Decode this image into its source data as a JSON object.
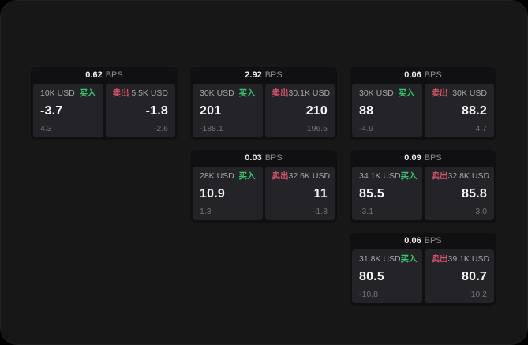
{
  "labels": {
    "bps_unit": "BPS",
    "buy": "买入",
    "sell": "卖出"
  },
  "colors": {
    "screen_bg": "#171718",
    "card_bg": "#101013",
    "tile_bg": "#242428",
    "buy_green": "#35c76a",
    "sell_red": "#d8536a",
    "value_white": "#f5f5f7",
    "label_gray": "#a6a6aa",
    "sub_gray": "#717176"
  },
  "cards": [
    {
      "bps": "0.62",
      "buy": {
        "amount": "10K USD",
        "price": "-3.7",
        "sub": "4.3"
      },
      "sell": {
        "amount": "5.5K USD",
        "price": "-1.8",
        "sub": "-2.6"
      }
    },
    {
      "bps": "2.92",
      "buy": {
        "amount": "30K USD",
        "price": "201",
        "sub": "-188.1"
      },
      "sell": {
        "amount": "30.1K USD",
        "price": "210",
        "sub": "196.5"
      }
    },
    {
      "bps": "0.06",
      "buy": {
        "amount": "30K USD",
        "price": "88",
        "sub": "-4.9"
      },
      "sell": {
        "amount": "30K USD",
        "price": "88.2",
        "sub": "4.7"
      }
    },
    {
      "bps": "0.03",
      "buy": {
        "amount": "28K USD",
        "price": "10.9",
        "sub": "1.3"
      },
      "sell": {
        "amount": "32.6K USD",
        "price": "11",
        "sub": "-1.8"
      }
    },
    {
      "bps": "0.09",
      "buy": {
        "amount": "34.1K USD",
        "price": "85.5",
        "sub": "-3.1"
      },
      "sell": {
        "amount": "32.8K USD",
        "price": "85.8",
        "sub": "3.0"
      }
    },
    {
      "bps": "0.06",
      "buy": {
        "amount": "31.8K USD",
        "price": "80.5",
        "sub": "-10.8"
      },
      "sell": {
        "amount": "39.1K USD",
        "price": "80.7",
        "sub": "10.2"
      }
    }
  ]
}
